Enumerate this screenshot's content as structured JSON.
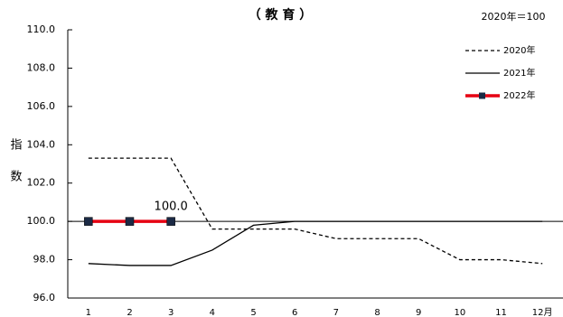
{
  "chart_data": {
    "type": "line",
    "title": "（ 教 育 ）",
    "subtitle": "2020年＝100",
    "y_label": "指数",
    "categories": [
      "1",
      "2",
      "3",
      "4",
      "5",
      "6",
      "7",
      "8",
      "9",
      "10",
      "11",
      "12月"
    ],
    "series": [
      {
        "name": "2020年",
        "color": "#000000",
        "dash": "4,3",
        "width": 1.3,
        "values": [
          103.3,
          103.3,
          103.3,
          99.6,
          99.6,
          99.6,
          99.1,
          99.1,
          99.1,
          98.0,
          98.0,
          97.8
        ]
      },
      {
        "name": "2021年",
        "color": "#000000",
        "width": 1.3,
        "values": [
          97.8,
          97.7,
          97.7,
          98.5,
          99.8,
          100.0,
          100.0,
          100.0,
          100.0,
          100.0,
          100.0,
          100.0
        ]
      },
      {
        "name": "2022年",
        "color": "#e60012",
        "width": 3.5,
        "marker": "square",
        "marker_color": "#1b2a45",
        "values": [
          100.0,
          100.0,
          100.0,
          null,
          null,
          null,
          null,
          null,
          null,
          null,
          null,
          null
        ],
        "value_labels": [
          null,
          null,
          "100.0",
          null,
          null,
          null,
          null,
          null,
          null,
          null,
          null,
          null
        ]
      }
    ],
    "reference_line": 100,
    "ylim": [
      96,
      110
    ],
    "yticks": [
      {
        "value": 96,
        "label": "96.0"
      },
      {
        "value": 98,
        "label": "98.0"
      },
      {
        "value": 100,
        "label": "100.0"
      },
      {
        "value": 102,
        "label": "102.0"
      },
      {
        "value": 104,
        "label": "104.0"
      },
      {
        "value": 106,
        "label": "106.0"
      },
      {
        "value": 108,
        "label": "108.0"
      },
      {
        "value": 110,
        "label": "110.0"
      }
    ],
    "legend": "upper right"
  }
}
